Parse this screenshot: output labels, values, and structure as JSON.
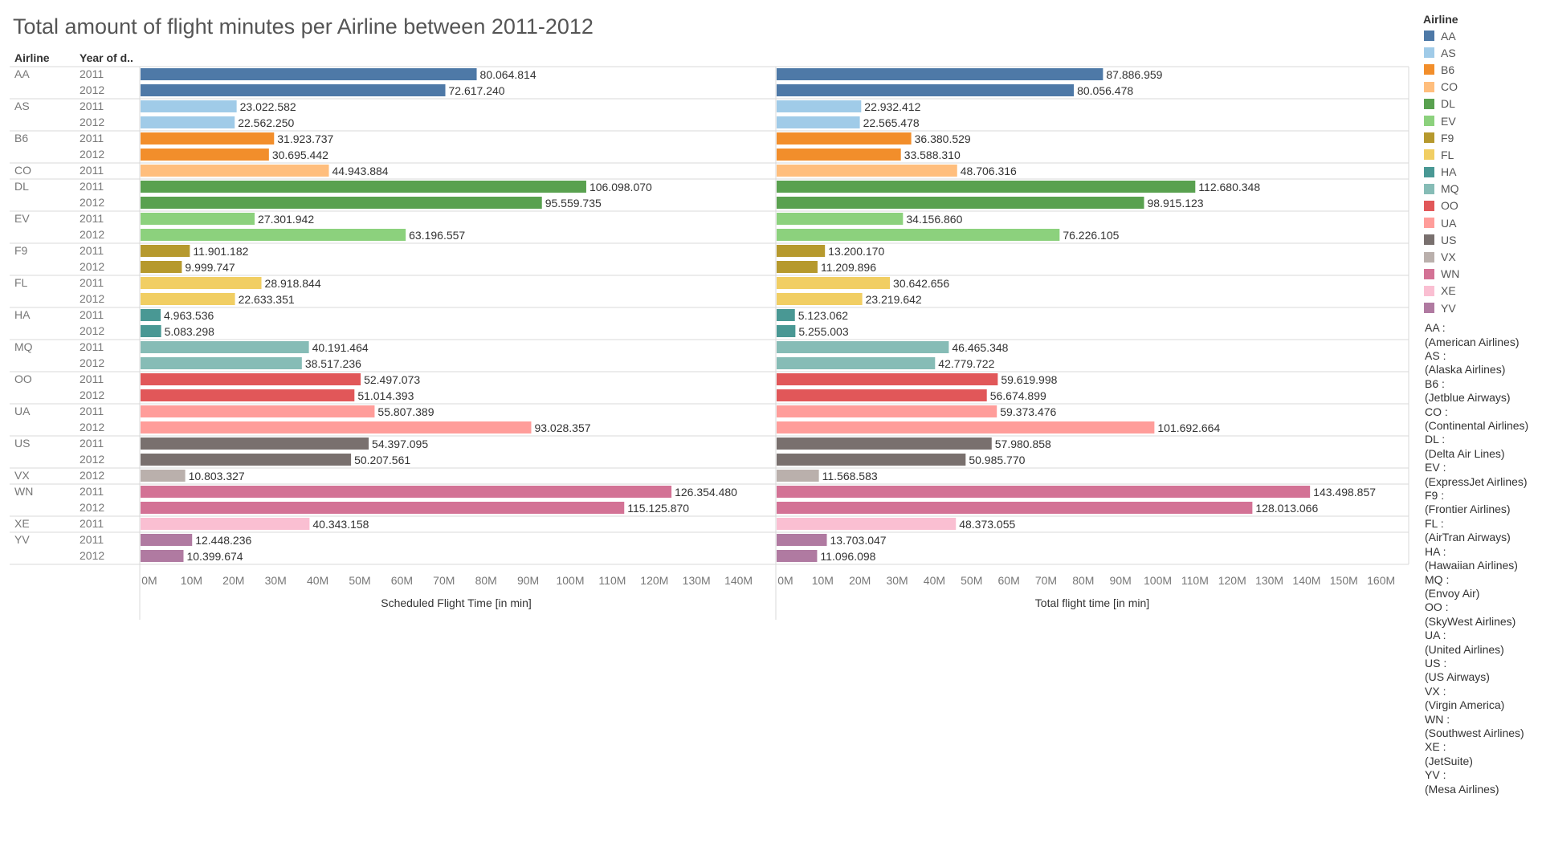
{
  "title": "Total amount of flight minutes per Airline between 2011-2012",
  "columns": {
    "airline": "Airline",
    "year": "Year of d.."
  },
  "legend": {
    "title": "Airline",
    "items": [
      {
        "code": "AA",
        "color": "#4e79a7"
      },
      {
        "code": "AS",
        "color": "#a0cbe8"
      },
      {
        "code": "B6",
        "color": "#f28e2b"
      },
      {
        "code": "CO",
        "color": "#ffbe7d"
      },
      {
        "code": "DL",
        "color": "#59a14f"
      },
      {
        "code": "EV",
        "color": "#8cd17d"
      },
      {
        "code": "F9",
        "color": "#b6992d"
      },
      {
        "code": "FL",
        "color": "#f1ce63"
      },
      {
        "code": "HA",
        "color": "#499894"
      },
      {
        "code": "MQ",
        "color": "#86bcb6"
      },
      {
        "code": "OO",
        "color": "#e15759"
      },
      {
        "code": "UA",
        "color": "#ff9d9a"
      },
      {
        "code": "US",
        "color": "#79706e"
      },
      {
        "code": "VX",
        "color": "#bab0ac"
      },
      {
        "code": "WN",
        "color": "#d37295"
      },
      {
        "code": "XE",
        "color": "#fabfd2"
      },
      {
        "code": "YV",
        "color": "#b07aa1"
      }
    ],
    "notes": [
      {
        "code": "AA :",
        "name": "(American Airlines)"
      },
      {
        "code": "AS :",
        "name": "(Alaska Airlines)"
      },
      {
        "code": "B6 :",
        "name": "(Jetblue Airways)"
      },
      {
        "code": "CO :",
        "name": "(Continental Airlines)"
      },
      {
        "code": "DL :",
        "name": "(Delta Air Lines)"
      },
      {
        "code": "EV :",
        "name": "(ExpressJet Airlines)"
      },
      {
        "code": "F9 :",
        "name": "(Frontier Airlines)"
      },
      {
        "code": "FL :",
        "name": "(AirTran Airways)"
      },
      {
        "code": "HA :",
        "name": "(Hawaiian Airlines)"
      },
      {
        "code": "MQ :",
        "name": "(Envoy Air)"
      },
      {
        "code": "OO :",
        "name": "(SkyWest Airlines)"
      },
      {
        "code": "UA :",
        "name": "(United Airlines)"
      },
      {
        "code": "US :",
        "name": "(US Airways)"
      },
      {
        "code": "VX :",
        "name": "(Virgin America)"
      },
      {
        "code": "WN :",
        "name": "(Southwest Airlines)"
      },
      {
        "code": "XE :",
        "name": "(JetSuite)"
      },
      {
        "code": "YV :",
        "name": "(Mesa Airlines)"
      }
    ]
  },
  "chart_data": {
    "type": "bar",
    "orientation": "horizontal",
    "title": "Total amount of flight minutes per Airline between 2011-2012",
    "grid": false,
    "groups": [
      {
        "airline": "AA",
        "rows": [
          {
            "year": "2011",
            "scheduled": 80064814,
            "total": 87886959,
            "scheduled_label": "80.064.814",
            "total_label": "87.886.959"
          },
          {
            "year": "2012",
            "scheduled": 72617240,
            "total": 80056478,
            "scheduled_label": "72.617.240",
            "total_label": "80.056.478"
          }
        ]
      },
      {
        "airline": "AS",
        "rows": [
          {
            "year": "2011",
            "scheduled": 23022582,
            "total": 22932412,
            "scheduled_label": "23.022.582",
            "total_label": "22.932.412"
          },
          {
            "year": "2012",
            "scheduled": 22562250,
            "total": 22565478,
            "scheduled_label": "22.562.250",
            "total_label": "22.565.478"
          }
        ]
      },
      {
        "airline": "B6",
        "rows": [
          {
            "year": "2011",
            "scheduled": 31923737,
            "total": 36380529,
            "scheduled_label": "31.923.737",
            "total_label": "36.380.529"
          },
          {
            "year": "2012",
            "scheduled": 30695442,
            "total": 33588310,
            "scheduled_label": "30.695.442",
            "total_label": "33.588.310"
          }
        ]
      },
      {
        "airline": "CO",
        "rows": [
          {
            "year": "2011",
            "scheduled": 44943884,
            "total": 48706316,
            "scheduled_label": "44.943.884",
            "total_label": "48.706.316"
          }
        ]
      },
      {
        "airline": "DL",
        "rows": [
          {
            "year": "2011",
            "scheduled": 106098070,
            "total": 112680348,
            "scheduled_label": "106.098.070",
            "total_label": "112.680.348"
          },
          {
            "year": "2012",
            "scheduled": 95559735,
            "total": 98915123,
            "scheduled_label": "95.559.735",
            "total_label": "98.915.123"
          }
        ]
      },
      {
        "airline": "EV",
        "rows": [
          {
            "year": "2011",
            "scheduled": 27301942,
            "total": 34156860,
            "scheduled_label": "27.301.942",
            "total_label": "34.156.860"
          },
          {
            "year": "2012",
            "scheduled": 63196557,
            "total": 76226105,
            "scheduled_label": "63.196.557",
            "total_label": "76.226.105"
          }
        ]
      },
      {
        "airline": "F9",
        "rows": [
          {
            "year": "2011",
            "scheduled": 11901182,
            "total": 13200170,
            "scheduled_label": "11.901.182",
            "total_label": "13.200.170"
          },
          {
            "year": "2012",
            "scheduled": 9999747,
            "total": 11209896,
            "scheduled_label": "9.999.747",
            "total_label": "11.209.896"
          }
        ]
      },
      {
        "airline": "FL",
        "rows": [
          {
            "year": "2011",
            "scheduled": 28918844,
            "total": 30642656,
            "scheduled_label": "28.918.844",
            "total_label": "30.642.656"
          },
          {
            "year": "2012",
            "scheduled": 22633351,
            "total": 23219642,
            "scheduled_label": "22.633.351",
            "total_label": "23.219.642"
          }
        ]
      },
      {
        "airline": "HA",
        "rows": [
          {
            "year": "2011",
            "scheduled": 4963536,
            "total": 5123062,
            "scheduled_label": "4.963.536",
            "total_label": "5.123.062"
          },
          {
            "year": "2012",
            "scheduled": 5083298,
            "total": 5255003,
            "scheduled_label": "5.083.298",
            "total_label": "5.255.003"
          }
        ]
      },
      {
        "airline": "MQ",
        "rows": [
          {
            "year": "2011",
            "scheduled": 40191464,
            "total": 46465348,
            "scheduled_label": "40.191.464",
            "total_label": "46.465.348"
          },
          {
            "year": "2012",
            "scheduled": 38517236,
            "total": 42779722,
            "scheduled_label": "38.517.236",
            "total_label": "42.779.722"
          }
        ]
      },
      {
        "airline": "OO",
        "rows": [
          {
            "year": "2011",
            "scheduled": 52497073,
            "total": 59619998,
            "scheduled_label": "52.497.073",
            "total_label": "59.619.998"
          },
          {
            "year": "2012",
            "scheduled": 51014393,
            "total": 56674899,
            "scheduled_label": "51.014.393",
            "total_label": "56.674.899"
          }
        ]
      },
      {
        "airline": "UA",
        "rows": [
          {
            "year": "2011",
            "scheduled": 55807389,
            "total": 59373476,
            "scheduled_label": "55.807.389",
            "total_label": "59.373.476"
          },
          {
            "year": "2012",
            "scheduled": 93028357,
            "total": 101692664,
            "scheduled_label": "93.028.357",
            "total_label": "101.692.664"
          }
        ]
      },
      {
        "airline": "US",
        "rows": [
          {
            "year": "2011",
            "scheduled": 54397095,
            "total": 57980858,
            "scheduled_label": "54.397.095",
            "total_label": "57.980.858"
          },
          {
            "year": "2012",
            "scheduled": 50207561,
            "total": 50985770,
            "scheduled_label": "50.207.561",
            "total_label": "50.985.770"
          }
        ]
      },
      {
        "airline": "VX",
        "rows": [
          {
            "year": "2012",
            "scheduled": 10803327,
            "total": 11568583,
            "scheduled_label": "10.803.327",
            "total_label": "11.568.583"
          }
        ]
      },
      {
        "airline": "WN",
        "rows": [
          {
            "year": "2011",
            "scheduled": 126354480,
            "total": 143498857,
            "scheduled_label": "126.354.480",
            "total_label": "143.498.857"
          },
          {
            "year": "2012",
            "scheduled": 115125870,
            "total": 128013066,
            "scheduled_label": "115.125.870",
            "total_label": "128.013.066"
          }
        ]
      },
      {
        "airline": "XE",
        "rows": [
          {
            "year": "2011",
            "scheduled": 40343158,
            "total": 48373055,
            "scheduled_label": "40.343.158",
            "total_label": "48.373.055"
          }
        ]
      },
      {
        "airline": "YV",
        "rows": [
          {
            "year": "2011",
            "scheduled": 12448236,
            "total": 13703047,
            "scheduled_label": "12.448.236",
            "total_label": "13.703.047"
          },
          {
            "year": "2012",
            "scheduled": 10399674,
            "total": 11096098,
            "scheduled_label": "10.399.674",
            "total_label": "11.096.098"
          }
        ]
      }
    ],
    "panels": [
      {
        "measure": "scheduled",
        "xlabel": "Scheduled Flight Time [in min]",
        "xlim": [
          0,
          150000000
        ],
        "ticks": [
          "0M",
          "10M",
          "20M",
          "30M",
          "40M",
          "50M",
          "60M",
          "70M",
          "80M",
          "90M",
          "100M",
          "110M",
          "120M",
          "130M",
          "140M"
        ]
      },
      {
        "measure": "total",
        "xlabel": "Total flight time [in min]",
        "xlim": [
          0,
          170000000
        ],
        "ticks": [
          "0M",
          "10M",
          "20M",
          "30M",
          "40M",
          "50M",
          "60M",
          "70M",
          "80M",
          "90M",
          "100M",
          "110M",
          "120M",
          "130M",
          "140M",
          "150M",
          "160M"
        ]
      }
    ],
    "legend_position": "right"
  }
}
